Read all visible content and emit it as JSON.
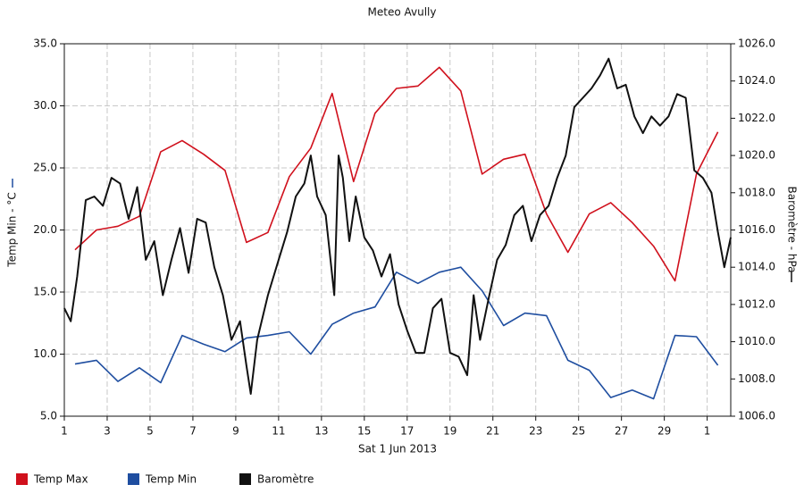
{
  "chart_data": {
    "type": "line",
    "title": "Meteo  Avully",
    "x_label": "Sat 1 Jun 2013",
    "y_label": "Temp Min - °C",
    "y2_label": "Baromètre - hPa",
    "xlim": [
      1,
      32.1
    ],
    "xticks": [
      1,
      3,
      5,
      7,
      9,
      11,
      13,
      15,
      17,
      19,
      21,
      23,
      25,
      27,
      29,
      {
        "value": 31,
        "label": "1"
      }
    ],
    "ylim": [
      5,
      35
    ],
    "yticks": [
      {
        "value": 5,
        "label": "5.0"
      },
      {
        "value": 10,
        "label": "10.0"
      },
      {
        "value": 15,
        "label": "15.0"
      },
      {
        "value": 20,
        "label": "20.0"
      },
      {
        "value": 25,
        "label": "25.0"
      },
      {
        "value": 30,
        "label": "30.0"
      },
      {
        "value": 35,
        "label": "35.0"
      }
    ],
    "y2lim": [
      1006,
      1026
    ],
    "y2ticks": [
      {
        "value": 1006,
        "label": "1006.0"
      },
      {
        "value": 1008,
        "label": "1008.0"
      },
      {
        "value": 1010,
        "label": "1010.0"
      },
      {
        "value": 1012,
        "label": "1012.0"
      },
      {
        "value": 1014,
        "label": "1014.0"
      },
      {
        "value": 1016,
        "label": "1016.0"
      },
      {
        "value": 1018,
        "label": "1018.0"
      },
      {
        "value": 1020,
        "label": "1020.0"
      },
      {
        "value": 1022,
        "label": "1022.0"
      },
      {
        "value": 1024,
        "label": "1024.0"
      },
      {
        "value": 1026,
        "label": "1026.0"
      }
    ],
    "grid": true,
    "legend": "bottom",
    "series": [
      {
        "name": "Temp Max",
        "color": "#d0101c",
        "x": [
          1.5,
          2.5,
          3.5,
          4.5,
          5.5,
          6.5,
          7.5,
          8.5,
          9.5,
          10.5,
          11.5,
          12.5,
          13.5,
          14.5,
          15.5,
          16.5,
          17.5,
          18.5,
          19.5,
          20.5,
          21.5,
          22.5,
          23.5,
          24.5,
          25.5,
          26.5,
          27.5,
          28.5,
          29.5,
          30.5,
          31.5
        ],
        "values": [
          18.4,
          20.0,
          20.3,
          21.1,
          26.3,
          27.2,
          26.1,
          24.8,
          19.0,
          19.8,
          24.3,
          26.6,
          31.0,
          23.9,
          29.4,
          31.4,
          31.6,
          33.1,
          31.2,
          24.5,
          25.7,
          26.1,
          21.3,
          18.2,
          21.3,
          22.2,
          20.6,
          18.7,
          15.9,
          24.5,
          27.9
        ]
      },
      {
        "name": "Temp Min",
        "color": "#1f4ea0",
        "x": [
          1.5,
          2.5,
          3.5,
          4.5,
          5.5,
          6.5,
          7.5,
          8.5,
          9.5,
          10.5,
          11.5,
          12.5,
          13.5,
          14.5,
          15.5,
          16.5,
          17.5,
          18.5,
          19.5,
          20.5,
          21.5,
          22.5,
          23.5,
          24.5,
          25.5,
          26.5,
          27.5,
          28.5,
          29.5,
          30.5,
          31.5
        ],
        "values": [
          9.2,
          9.5,
          7.8,
          8.9,
          7.7,
          11.5,
          10.8,
          10.2,
          11.3,
          11.5,
          11.8,
          10.0,
          12.4,
          13.3,
          13.8,
          16.6,
          15.7,
          16.6,
          17.0,
          15.1,
          12.3,
          13.3,
          13.1,
          9.5,
          8.7,
          6.5,
          7.1,
          6.4,
          11.5,
          11.4,
          9.1
        ]
      },
      {
        "name": "Baromètre",
        "color": "#111111",
        "axis": "y2",
        "x": [
          1.0,
          1.3,
          1.6,
          2.0,
          2.4,
          2.8,
          3.2,
          3.6,
          4.0,
          4.4,
          4.8,
          5.2,
          5.6,
          6.0,
          6.4,
          6.8,
          7.2,
          7.6,
          8.0,
          8.4,
          8.8,
          9.2,
          9.5,
          9.7,
          10.0,
          10.5,
          11.0,
          11.4,
          11.8,
          12.2,
          12.5,
          12.8,
          13.2,
          13.6,
          13.8,
          14.0,
          14.3,
          14.6,
          15.0,
          15.4,
          15.8,
          16.2,
          16.6,
          17.0,
          17.4,
          17.8,
          18.2,
          18.6,
          19.0,
          19.4,
          19.8,
          20.1,
          20.4,
          20.8,
          21.2,
          21.6,
          22.0,
          22.4,
          22.8,
          23.2,
          23.6,
          24.0,
          24.4,
          24.8,
          25.2,
          25.6,
          26.0,
          26.4,
          26.8,
          27.2,
          27.6,
          28.0,
          28.4,
          28.8,
          29.2,
          29.6,
          30.0,
          30.4,
          30.8,
          31.2,
          31.5,
          31.8,
          32.1
        ],
        "values": [
          1011.8,
          1011.1,
          1013.5,
          1017.6,
          1017.8,
          1017.3,
          1018.8,
          1018.5,
          1016.6,
          1018.3,
          1014.4,
          1015.4,
          1012.5,
          1014.4,
          1016.1,
          1013.7,
          1016.6,
          1016.4,
          1014.0,
          1012.5,
          1010.1,
          1011.1,
          1008.7,
          1007.2,
          1010.1,
          1012.5,
          1014.4,
          1015.9,
          1017.8,
          1018.5,
          1020.0,
          1017.8,
          1016.8,
          1012.5,
          1020.0,
          1018.8,
          1015.4,
          1017.8,
          1015.6,
          1014.9,
          1013.5,
          1014.7,
          1012.0,
          1010.6,
          1009.4,
          1009.4,
          1011.8,
          1012.3,
          1009.4,
          1009.2,
          1008.2,
          1012.5,
          1010.1,
          1012.3,
          1014.4,
          1015.2,
          1016.8,
          1017.3,
          1015.4,
          1016.8,
          1017.3,
          1018.8,
          1020.0,
          1022.6,
          1023.1,
          1023.6,
          1024.3,
          1025.2,
          1023.6,
          1023.8,
          1022.1,
          1021.2,
          1022.1,
          1021.6,
          1022.1,
          1023.3,
          1023.1,
          1019.2,
          1018.8,
          1018.0,
          1015.9,
          1014.0,
          1015.6
        ]
      }
    ]
  }
}
